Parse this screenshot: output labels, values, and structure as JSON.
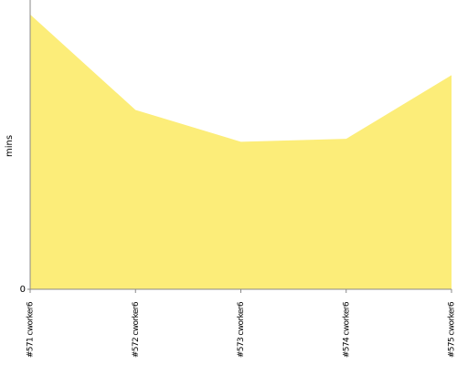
{
  "chart_data": {
    "type": "area",
    "y_label": "mins",
    "categories": [
      "#571 cworker6",
      "#572 cworker6",
      "#573 cworker6",
      "#574 cworker6",
      "#575 cworker6"
    ],
    "values": [
      9.5,
      6.2,
      5.1,
      5.2,
      7.4
    ],
    "color": "#fced79",
    "ylim": [
      0,
      10
    ],
    "yticks": [
      0
    ]
  }
}
